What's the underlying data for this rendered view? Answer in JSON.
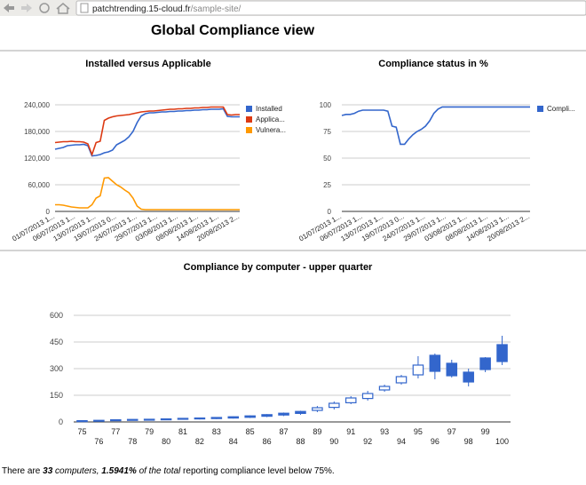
{
  "browser": {
    "url_host": "patchtrending.15-cloud.fr",
    "url_path": "/sample-site/"
  },
  "page": {
    "title": "Global Compliance view"
  },
  "chart_data": [
    {
      "type": "line",
      "title": "Installed versus Applicable",
      "categories": [
        "01/07/2013 1...",
        null,
        null,
        null,
        null,
        "06/07/2013 1...",
        null,
        null,
        null,
        null,
        "13/07/2013 1...",
        null,
        null,
        null,
        null,
        "19/07/2013 0...",
        null,
        null,
        null,
        null,
        "24/07/2013 1...",
        null,
        null,
        null,
        null,
        "29/07/2013 1...",
        null,
        null,
        null,
        null,
        "03/08/2013 1...",
        null,
        null,
        null,
        null,
        "08/08/2013 1...",
        null,
        null,
        null,
        null,
        "14/08/2013 1...",
        null,
        null,
        null,
        null,
        "20/08/2013 2..."
      ],
      "series": [
        {
          "name": "Installed",
          "color": "#3366cc",
          "values": [
            140000,
            142000,
            144000,
            148000,
            149000,
            150000,
            150000,
            151000,
            148000,
            125000,
            126000,
            128000,
            132000,
            134000,
            138000,
            150000,
            155000,
            160000,
            168000,
            180000,
            200000,
            215000,
            220000,
            222000,
            222000,
            223000,
            224000,
            224000,
            225000,
            225000,
            226000,
            226000,
            227000,
            227000,
            228000,
            228000,
            229000,
            229000,
            230000,
            230000,
            230000,
            231000,
            214000,
            213000,
            213000,
            213000
          ]
        },
        {
          "name": "Applica...",
          "color": "#dc3912",
          "values": [
            155000,
            156000,
            157000,
            157000,
            158000,
            157000,
            157000,
            156000,
            152000,
            128000,
            155000,
            158000,
            205000,
            210000,
            213000,
            215000,
            216000,
            217000,
            218000,
            220000,
            222000,
            224000,
            225000,
            226000,
            226000,
            227000,
            228000,
            229000,
            230000,
            230000,
            231000,
            231000,
            232000,
            232000,
            233000,
            233000,
            234000,
            234000,
            235000,
            235000,
            235000,
            235000,
            218000,
            217000,
            218000,
            218000
          ]
        },
        {
          "name": "Vulnera...",
          "color": "#ff9900",
          "values": [
            15000,
            15000,
            14000,
            12000,
            10000,
            9000,
            8000,
            8000,
            8000,
            15000,
            30000,
            35000,
            75000,
            76000,
            68000,
            60000,
            55000,
            48000,
            42000,
            30000,
            12000,
            5000,
            4000,
            4000,
            4000,
            4000,
            4000,
            4000,
            4000,
            4000,
            4000,
            4000,
            4000,
            4000,
            4000,
            4000,
            4000,
            4000,
            4000,
            4000,
            4000,
            4000,
            4000,
            4000,
            4000,
            4000
          ]
        }
      ],
      "ylim": [
        0,
        240000
      ],
      "yticks": [
        {
          "value": 0,
          "label": "0"
        },
        {
          "value": 60000,
          "label": "60,000"
        },
        {
          "value": 120000,
          "label": "120,000"
        },
        {
          "value": 180000,
          "label": "180,000"
        },
        {
          "value": 240000,
          "label": "240,000"
        }
      ],
      "grid": true,
      "legend": "right"
    },
    {
      "type": "line",
      "title": "Compliance status in %",
      "categories": [
        "01/07/2013 1...",
        null,
        null,
        null,
        null,
        "06/07/2013 1...",
        null,
        null,
        null,
        null,
        "13/07/2013 1...",
        null,
        null,
        null,
        null,
        "19/07/2013 0...",
        null,
        null,
        null,
        null,
        "24/07/2013 1...",
        null,
        null,
        null,
        null,
        "29/07/2013 1...",
        null,
        null,
        null,
        null,
        "03/08/2013 1...",
        null,
        null,
        null,
        null,
        "08/08/2013 1...",
        null,
        null,
        null,
        null,
        "14/08/2013 1...",
        null,
        null,
        null,
        null,
        "20/08/2013 2..."
      ],
      "series": [
        {
          "name": "Compli...",
          "color": "#3366cc",
          "values": [
            90,
            91,
            91,
            92,
            94,
            95,
            95,
            95,
            95,
            95,
            95,
            94,
            80,
            79,
            63,
            63,
            68,
            72,
            75,
            77,
            80,
            85,
            92,
            96,
            98,
            98,
            98,
            98,
            98,
            98,
            98,
            98,
            98,
            98,
            98,
            98,
            98,
            98,
            98,
            98,
            98,
            98,
            98,
            98,
            98,
            98
          ]
        }
      ],
      "ylim": [
        0,
        100
      ],
      "yticks": [
        0,
        25,
        50,
        75,
        100
      ],
      "grid": true,
      "legend": "right"
    },
    {
      "type": "candlestick",
      "title": "Compliance by computer - upper quarter",
      "categories": [
        "75",
        "76",
        "77",
        "78",
        "79",
        "80",
        "81",
        "82",
        "83",
        "84",
        "85",
        "86",
        "87",
        "88",
        "89",
        "90",
        "91",
        "92",
        "93",
        "94",
        "95",
        "96",
        "97",
        "98",
        "99",
        "100"
      ],
      "series": [
        {
          "color": "#3366cc",
          "low": [
            3,
            4,
            6,
            8,
            9,
            11,
            13,
            14,
            16,
            19,
            22,
            27,
            33,
            40,
            55,
            70,
            100,
            120,
            170,
            210,
            245,
            240,
            250,
            200,
            280,
            320
          ],
          "open": [
            7,
            9,
            12,
            14,
            15,
            17,
            20,
            22,
            25,
            29,
            34,
            41,
            49,
            59,
            65,
            82,
            108,
            132,
            180,
            220,
            265,
            375,
            330,
            280,
            360,
            435
          ],
          "close": [
            4,
            6,
            8,
            10,
            11,
            13,
            15,
            17,
            19,
            22,
            26,
            32,
            39,
            48,
            80,
            105,
            135,
            160,
            200,
            255,
            320,
            285,
            260,
            225,
            295,
            340
          ],
          "high": [
            8,
            10,
            13,
            15,
            16,
            18,
            22,
            24,
            27,
            31,
            37,
            44,
            53,
            63,
            90,
            115,
            145,
            175,
            210,
            265,
            370,
            385,
            350,
            300,
            365,
            485
          ]
        }
      ],
      "ylim": [
        0,
        600
      ],
      "yticks": [
        0,
        150,
        300,
        450,
        600
      ],
      "grid": true
    }
  ],
  "footer": {
    "lead": "There are",
    "count": "33",
    "count_suffix": "computers,",
    "percent": "1.5941%",
    "percent_suffix": "of the total",
    "tail": "reporting compliance level below 75%."
  }
}
